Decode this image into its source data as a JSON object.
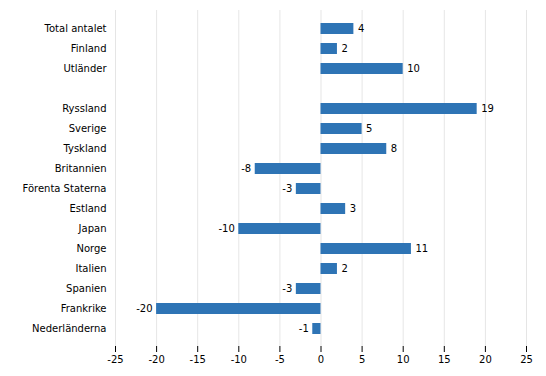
{
  "chart_data": {
    "type": "bar",
    "orientation": "horizontal",
    "categories": [
      "Total antalet",
      "Finland",
      "Utländer",
      null,
      "Ryssland",
      "Sverige",
      "Tyskland",
      "Britannien",
      "Förenta Staterna",
      "Estland",
      "Japan",
      "Norge",
      "Italien",
      "Spanien",
      "Frankrike",
      "Nederländerna"
    ],
    "values": [
      4,
      2,
      10,
      null,
      19,
      5,
      8,
      -8,
      -3,
      3,
      -10,
      11,
      2,
      -3,
      -20,
      -1
    ],
    "color": "#2E74B5",
    "xlim": [
      -25,
      25
    ],
    "xticks": [
      -25,
      -20,
      -15,
      -10,
      -5,
      0,
      5,
      10,
      15,
      20,
      25
    ],
    "grid": true,
    "data_labels": true
  }
}
